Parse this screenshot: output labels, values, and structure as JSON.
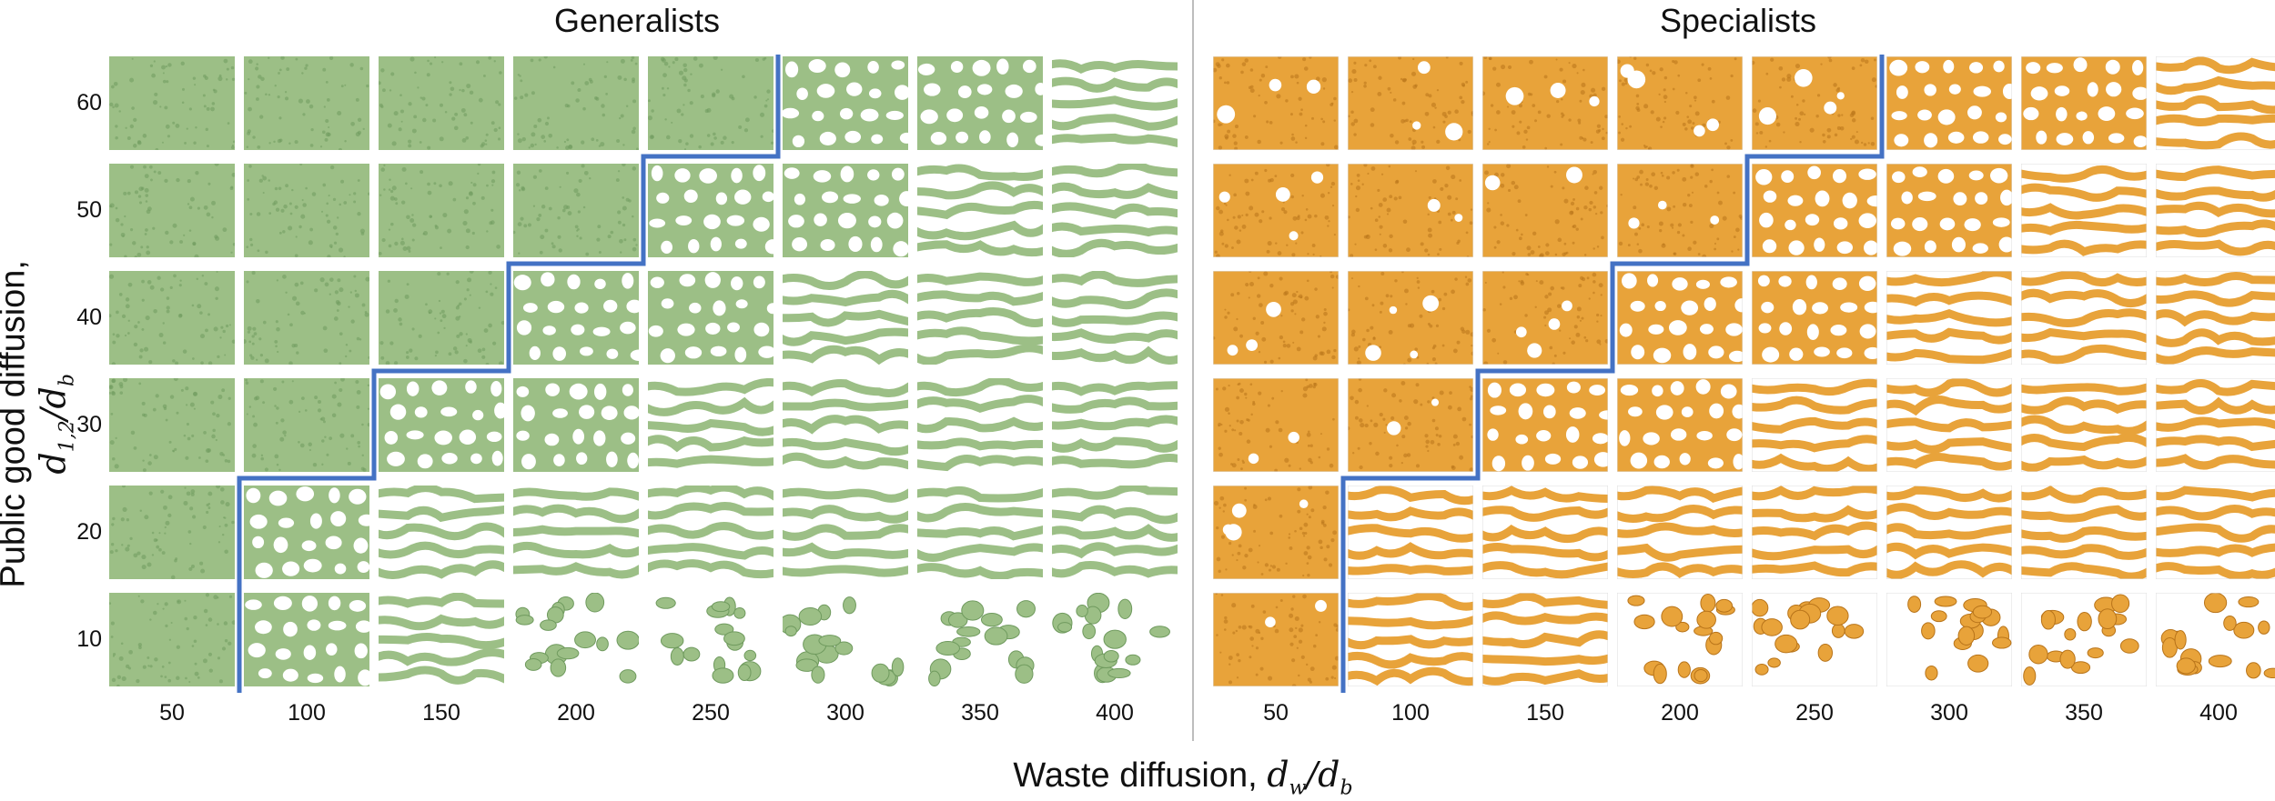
{
  "panels": [
    {
      "title": "Generalists",
      "color_light": "#9cbf86",
      "color_dark": "#6f9a5e",
      "bg": "#ffffff"
    },
    {
      "title": "Specialists",
      "color_light": "#e8a33a",
      "color_dark": "#b8741a",
      "bg": "#ffffff"
    }
  ],
  "x_ticks": [
    "50",
    "100",
    "150",
    "200",
    "250",
    "300",
    "350",
    "400"
  ],
  "y_ticks": [
    "60",
    "50",
    "40",
    "30",
    "20",
    "10"
  ],
  "x_axis_label": "Waste diffusion,",
  "x_axis_math": "dᵤ/dᵦ",
  "x_axis_math_text": "dw/db",
  "y_axis_label": "Public good diffusion,",
  "y_axis_math_text": "d1,2/db",
  "boundary_color": "#4472c4",
  "generalists_boundary_cols_by_row": [
    5,
    4,
    3,
    2,
    1,
    1
  ],
  "specialists_boundary_cols_by_row": [
    5,
    4,
    3,
    2,
    1,
    1
  ],
  "pattern_legend": "uniform | spots | labyrinth"
}
